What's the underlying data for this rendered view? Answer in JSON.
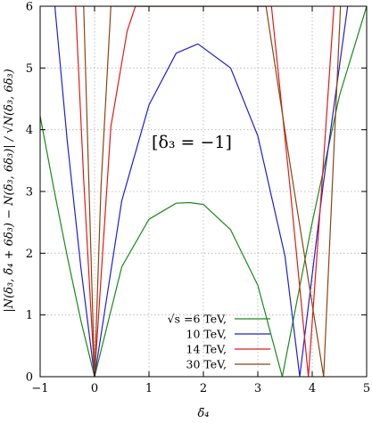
{
  "chart_data": {
    "type": "line",
    "title": "",
    "xlabel": "δ̃₄",
    "ylabel": "|N(δ₃, δ̃₄ + 6δ₃) − N(δ₃, 6δ₃)| / √N(δ₃, 6δ₃)",
    "xlim": [
      -1,
      5
    ],
    "ylim": [
      0,
      6
    ],
    "xticks": [
      "−1",
      "0",
      "1",
      "2",
      "3",
      "4",
      "5"
    ],
    "yticks": [
      "0",
      "1",
      "2",
      "3",
      "4",
      "5",
      "6"
    ],
    "grid": true,
    "annotation": "[δ₃ = −1]",
    "legend_position": "bottom-center",
    "legend_prefix": "√s =",
    "series": [
      {
        "name": "6 TeV,",
        "color": "#1a8a1a",
        "x": [
          -1.0,
          -0.75,
          -0.5,
          -0.25,
          0.0,
          0.5,
          1.0,
          1.5,
          1.75,
          2.0,
          2.5,
          3.0,
          3.45,
          4.0,
          4.5,
          5.0
        ],
        "y": [
          4.22,
          3.05,
          1.94,
          0.9,
          0.0,
          1.78,
          2.55,
          2.81,
          2.82,
          2.79,
          2.38,
          1.48,
          0.0,
          2.5,
          4.55,
          6.0
        ]
      },
      {
        "name": "10 TeV,",
        "color": "#1f1fd6",
        "x": [
          -0.73,
          -0.5,
          -0.25,
          0.0,
          0.5,
          1.0,
          1.5,
          1.9,
          2.5,
          3.0,
          3.5,
          3.77,
          4.2,
          4.65
        ],
        "y": [
          6.0,
          3.8,
          1.75,
          0.0,
          2.85,
          4.4,
          5.24,
          5.39,
          5.0,
          3.9,
          1.95,
          0.0,
          3.1,
          6.0
        ]
      },
      {
        "name": "14 TeV,",
        "color": "#e01a1a",
        "x": [
          -0.35,
          -0.2,
          0.0,
          0.3,
          0.6,
          0.75,
          3.25,
          3.6,
          3.93,
          4.2,
          4.4
        ],
        "y": [
          6.0,
          3.2,
          0.0,
          4.05,
          5.6,
          6.0,
          6.0,
          3.0,
          0.0,
          3.4,
          6.0
        ]
      },
      {
        "name": "30 TeV,",
        "color": "#8b4513",
        "x": [
          -0.2,
          -0.1,
          0.0,
          0.12,
          0.3,
          3.15,
          3.6,
          4.21,
          4.4,
          4.52
        ],
        "y": [
          6.0,
          3.0,
          0.0,
          3.1,
          6.0,
          6.0,
          3.4,
          0.0,
          3.7,
          6.0
        ]
      }
    ]
  }
}
